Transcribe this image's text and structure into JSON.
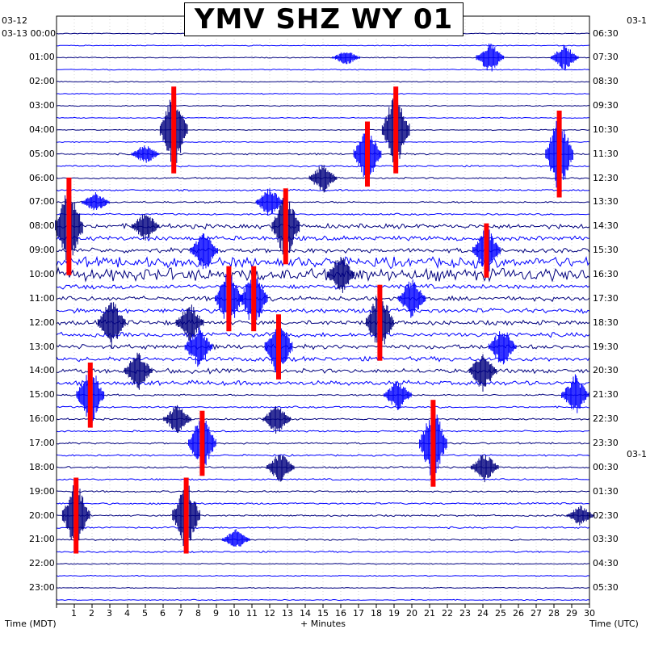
{
  "title": "YMV SHZ WY 01",
  "left_axis": {
    "label": "Time (MDT)",
    "date_top": "03-12",
    "date_start": "03-13",
    "ticks": [
      "00:00",
      "01:00",
      "02:00",
      "03:00",
      "04:00",
      "05:00",
      "06:00",
      "07:00",
      "08:00",
      "09:00",
      "10:00",
      "11:00",
      "12:00",
      "13:00",
      "14:00",
      "15:00",
      "16:00",
      "17:00",
      "18:00",
      "19:00",
      "20:00",
      "21:00",
      "22:00",
      "23:00"
    ]
  },
  "right_axis": {
    "label": "Time (UTC)",
    "date_top": "03-1",
    "date_mid": "03-1",
    "ticks": [
      "06:30",
      "07:30",
      "08:30",
      "09:30",
      "10:30",
      "11:30",
      "12:30",
      "13:30",
      "14:30",
      "15:30",
      "16:30",
      "17:30",
      "18:30",
      "19:30",
      "20:30",
      "21:30",
      "22:30",
      "23:30",
      "00:30",
      "01:30",
      "02:30",
      "03:30",
      "04:30",
      "05:30"
    ]
  },
  "bottom_axis": {
    "label": "+ Minutes",
    "ticks": [
      "1",
      "2",
      "3",
      "4",
      "5",
      "6",
      "7",
      "8",
      "9",
      "10",
      "11",
      "12",
      "13",
      "14",
      "15",
      "16",
      "17",
      "18",
      "19",
      "20",
      "21",
      "22",
      "23",
      "24",
      "25",
      "26",
      "27",
      "28",
      "29",
      "30"
    ]
  },
  "chart_data": {
    "type": "line",
    "description_free": true,
    "rows_per_hour": 2,
    "minutes_per_row": 30,
    "trace_colors": [
      "#00007f",
      "#0000ff"
    ],
    "clip_color": "#ff0000",
    "xlim": [
      0,
      30
    ],
    "quiet_hours": [
      0,
      1,
      2,
      3,
      4,
      22,
      23
    ],
    "active_hours": [
      8,
      9,
      10,
      11,
      12,
      13,
      14
    ],
    "events": [
      {
        "hour": 1,
        "minute": 24.4,
        "amp": 3,
        "clipped": false
      },
      {
        "hour": 1,
        "minute": 28.6,
        "amp": 2.5,
        "clipped": false
      },
      {
        "hour": 1,
        "minute": 16.3,
        "amp": 1.5,
        "clipped": false
      },
      {
        "hour": 4,
        "minute": 6.6,
        "amp": 8,
        "clipped": true
      },
      {
        "hour": 4,
        "minute": 19.1,
        "amp": 8,
        "clipped": true
      },
      {
        "hour": 5,
        "minute": 17.5,
        "amp": 6,
        "clipped": true
      },
      {
        "hour": 5,
        "minute": 28.3,
        "amp": 8,
        "clipped": true
      },
      {
        "hour": 5,
        "minute": 5.0,
        "amp": 2,
        "clipped": false
      },
      {
        "hour": 6,
        "minute": 15.0,
        "amp": 3,
        "clipped": false
      },
      {
        "hour": 7,
        "minute": 12.0,
        "amp": 3,
        "clipped": false
      },
      {
        "hour": 7,
        "minute": 2.2,
        "amp": 2,
        "clipped": false
      },
      {
        "hour": 8,
        "minute": 0.7,
        "amp": 9,
        "clipped": true
      },
      {
        "hour": 8,
        "minute": 12.9,
        "amp": 7,
        "clipped": true
      },
      {
        "hour": 8,
        "minute": 5.0,
        "amp": 3,
        "clipped": false
      },
      {
        "hour": 9,
        "minute": 24.2,
        "amp": 5,
        "clipped": true
      },
      {
        "hour": 9,
        "minute": 8.3,
        "amp": 4,
        "clipped": false
      },
      {
        "hour": 10,
        "minute": 16.0,
        "amp": 4,
        "clipped": false
      },
      {
        "hour": 11,
        "minute": 9.7,
        "amp": 6,
        "clipped": true
      },
      {
        "hour": 11,
        "minute": 11.1,
        "amp": 6,
        "clipped": true
      },
      {
        "hour": 11,
        "minute": 20.0,
        "amp": 4,
        "clipped": false
      },
      {
        "hour": 12,
        "minute": 3.1,
        "amp": 5,
        "clipped": false
      },
      {
        "hour": 12,
        "minute": 18.2,
        "amp": 7,
        "clipped": true
      },
      {
        "hour": 12,
        "minute": 7.5,
        "amp": 4,
        "clipped": false
      },
      {
        "hour": 13,
        "minute": 12.5,
        "amp": 6,
        "clipped": true
      },
      {
        "hour": 13,
        "minute": 25.1,
        "amp": 4,
        "clipped": false
      },
      {
        "hour": 13,
        "minute": 8.0,
        "amp": 4,
        "clipped": false
      },
      {
        "hour": 14,
        "minute": 4.6,
        "amp": 4,
        "clipped": false
      },
      {
        "hour": 14,
        "minute": 24.0,
        "amp": 4,
        "clipped": false
      },
      {
        "hour": 15,
        "minute": 1.9,
        "amp": 6,
        "clipped": true
      },
      {
        "hour": 15,
        "minute": 19.2,
        "amp": 3,
        "clipped": false
      },
      {
        "hour": 15,
        "minute": 29.2,
        "amp": 4,
        "clipped": false
      },
      {
        "hour": 16,
        "minute": 6.8,
        "amp": 3,
        "clipped": false
      },
      {
        "hour": 16,
        "minute": 12.4,
        "amp": 3,
        "clipped": false
      },
      {
        "hour": 17,
        "minute": 8.2,
        "amp": 6,
        "clipped": true
      },
      {
        "hour": 17,
        "minute": 21.2,
        "amp": 8,
        "clipped": true
      },
      {
        "hour": 18,
        "minute": 12.6,
        "amp": 3,
        "clipped": false
      },
      {
        "hour": 18,
        "minute": 24.1,
        "amp": 3,
        "clipped": false
      },
      {
        "hour": 20,
        "minute": 1.1,
        "amp": 7,
        "clipped": true
      },
      {
        "hour": 20,
        "minute": 7.3,
        "amp": 7,
        "clipped": true
      },
      {
        "hour": 20,
        "minute": 29.5,
        "amp": 2,
        "clipped": false
      },
      {
        "hour": 21,
        "minute": 10.1,
        "amp": 2,
        "clipped": false
      }
    ]
  }
}
